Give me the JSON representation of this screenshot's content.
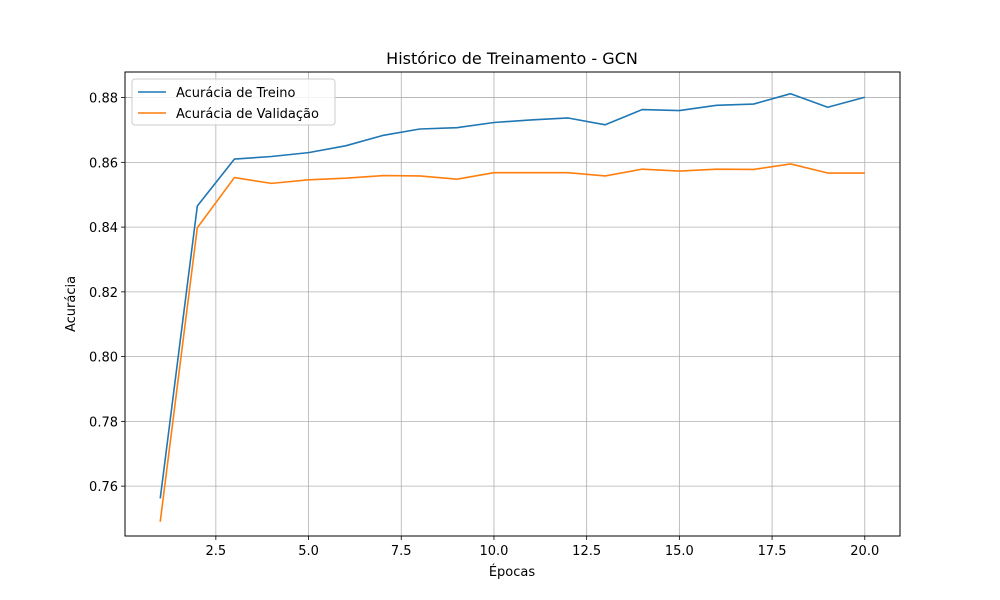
{
  "chart_data": {
    "type": "line",
    "title": "Histórico de Treinamento - GCN",
    "xlabel": "Épocas",
    "ylabel": "Acurácia",
    "xlim": [
      0.05,
      20.95
    ],
    "ylim": [
      0.7446,
      0.8879
    ],
    "xticks": [
      2.5,
      5.0,
      7.5,
      10.0,
      12.5,
      15.0,
      17.5,
      20.0
    ],
    "xtick_labels": [
      "2.5",
      "5.0",
      "7.5",
      "10.0",
      "12.5",
      "15.0",
      "17.5",
      "20.0"
    ],
    "yticks": [
      0.76,
      0.78,
      0.8,
      0.82,
      0.84,
      0.86,
      0.88
    ],
    "ytick_labels": [
      "0.76",
      "0.78",
      "0.80",
      "0.82",
      "0.84",
      "0.86",
      "0.88"
    ],
    "grid": true,
    "legend_position": "top-left",
    "x": [
      1,
      2,
      3,
      4,
      5,
      6,
      7,
      8,
      9,
      10,
      11,
      12,
      13,
      14,
      15,
      16,
      17,
      18,
      19,
      20
    ],
    "series": [
      {
        "name": "Acurácia de Treino",
        "color": "#1f77b4",
        "values": [
          0.7562,
          0.8465,
          0.861,
          0.8618,
          0.863,
          0.8651,
          0.8683,
          0.8703,
          0.8707,
          0.8723,
          0.8731,
          0.8737,
          0.8716,
          0.8763,
          0.876,
          0.8776,
          0.878,
          0.8812,
          0.877,
          0.8801
        ]
      },
      {
        "name": "Acurácia de Validação",
        "color": "#ff7f0e",
        "values": [
          0.749,
          0.8398,
          0.8553,
          0.8535,
          0.8546,
          0.8551,
          0.8559,
          0.8558,
          0.8548,
          0.8568,
          0.8568,
          0.8568,
          0.8558,
          0.8579,
          0.8573,
          0.8579,
          0.8578,
          0.8595,
          0.8567,
          0.8567
        ]
      }
    ]
  }
}
